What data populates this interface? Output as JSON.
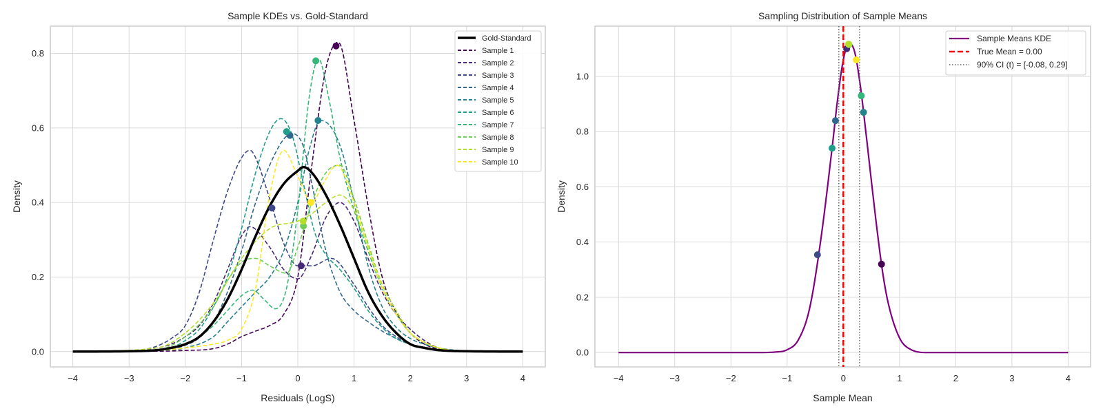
{
  "chart_data": [
    {
      "type": "line",
      "title": "Sample KDEs vs. Gold-Standard",
      "xlabel": "Residuals (LogS)",
      "ylabel": "Density",
      "xlim": [
        -4.4,
        4.4
      ],
      "ylim": [
        -0.041,
        0.873
      ],
      "xticks": [
        -4,
        -3,
        -2,
        -1,
        0,
        1,
        2,
        3,
        4
      ],
      "yticks": [
        0.0,
        0.2,
        0.4,
        0.6,
        0.8
      ],
      "grid": true,
      "legend_position": "top-right",
      "series": [
        {
          "name": "Gold-Standard",
          "color": "#000000",
          "style": "solid",
          "x": [
            -4,
            -3,
            -2.5,
            -2.25,
            -2,
            -1.75,
            -1.5,
            -1.25,
            -1,
            -0.75,
            -0.5,
            -0.25,
            0,
            0.1,
            0.25,
            0.5,
            0.75,
            1,
            1.25,
            1.5,
            1.75,
            2,
            2.25,
            2.5,
            3,
            4
          ],
          "y": [
            0,
            0.001,
            0.004,
            0.01,
            0.02,
            0.04,
            0.08,
            0.14,
            0.22,
            0.31,
            0.39,
            0.45,
            0.485,
            0.495,
            0.48,
            0.42,
            0.34,
            0.25,
            0.16,
            0.095,
            0.05,
            0.02,
            0.01,
            0.004,
            0.001,
            0
          ]
        },
        {
          "name": "Sample 1",
          "color": "#440154",
          "style": "dashed",
          "mean": 0.68,
          "mean_density": 0.82,
          "x": [
            -4,
            -2.5,
            -2,
            -1.5,
            -1.25,
            -1,
            -0.75,
            -0.5,
            -0.25,
            0,
            0.25,
            0.5,
            0.72,
            1,
            1.25,
            1.5,
            1.75,
            2,
            2.25,
            2.5,
            3,
            4
          ],
          "y": [
            0,
            0.001,
            0.003,
            0.008,
            0.02,
            0.04,
            0.055,
            0.07,
            0.1,
            0.2,
            0.5,
            0.76,
            0.83,
            0.62,
            0.39,
            0.2,
            0.105,
            0.05,
            0.02,
            0.007,
            0.001,
            0
          ]
        },
        {
          "name": "Sample 2",
          "color": "#482878",
          "style": "dashed",
          "mean": 0.06,
          "mean_density": 0.23,
          "x": [
            -4,
            -3,
            -2.5,
            -2.25,
            -2,
            -1.75,
            -1.5,
            -1.25,
            -1,
            -0.85,
            -0.5,
            -0.25,
            0,
            0.25,
            0.5,
            0.75,
            1,
            1.25,
            1.5,
            1.75,
            2,
            2.25,
            2.5,
            3,
            4
          ],
          "y": [
            0,
            0.002,
            0.01,
            0.02,
            0.04,
            0.07,
            0.13,
            0.22,
            0.31,
            0.335,
            0.28,
            0.22,
            0.195,
            0.26,
            0.36,
            0.4,
            0.35,
            0.25,
            0.16,
            0.1,
            0.06,
            0.03,
            0.01,
            0.002,
            0
          ]
        },
        {
          "name": "Sample 3",
          "color": "#3e4989",
          "style": "dashed",
          "mean": -0.46,
          "mean_density": 0.385,
          "x": [
            -4,
            -3,
            -2.75,
            -2.5,
            -2.25,
            -2,
            -1.75,
            -1.5,
            -1.25,
            -1,
            -0.85,
            -0.75,
            -0.5,
            -0.25,
            0,
            0.25,
            0.6,
            1,
            1.25,
            1.5,
            1.75,
            2,
            2.5,
            3,
            4
          ],
          "y": [
            0,
            0.002,
            0.005,
            0.015,
            0.035,
            0.07,
            0.16,
            0.3,
            0.43,
            0.52,
            0.54,
            0.52,
            0.41,
            0.29,
            0.23,
            0.23,
            0.25,
            0.18,
            0.12,
            0.07,
            0.04,
            0.02,
            0.005,
            0.001,
            0
          ]
        },
        {
          "name": "Sample 4",
          "color": "#31688e",
          "style": "dashed",
          "mean": -0.14,
          "mean_density": 0.58,
          "x": [
            -4,
            -2.75,
            -2.5,
            -2.25,
            -2,
            -1.75,
            -1.5,
            -1.25,
            -1,
            -0.75,
            -0.5,
            -0.25,
            -0.1,
            0.1,
            0.25,
            0.5,
            0.75,
            1,
            1.25,
            1.5,
            1.75,
            2,
            2.5,
            3,
            4
          ],
          "y": [
            0,
            0.001,
            0.003,
            0.007,
            0.017,
            0.037,
            0.08,
            0.16,
            0.27,
            0.4,
            0.5,
            0.57,
            0.585,
            0.55,
            0.45,
            0.27,
            0.16,
            0.11,
            0.08,
            0.055,
            0.035,
            0.02,
            0.006,
            0.001,
            0
          ]
        },
        {
          "name": "Sample 5",
          "color": "#26828e",
          "style": "dashed",
          "mean": 0.36,
          "mean_density": 0.62,
          "x": [
            -4,
            -2.5,
            -2,
            -1.5,
            -1.25,
            -1,
            -0.75,
            -0.5,
            -0.25,
            0,
            0.2,
            0.4,
            0.6,
            0.8,
            1,
            1.25,
            1.5,
            1.75,
            2,
            2.25,
            2.5,
            3,
            4
          ],
          "y": [
            0,
            0.003,
            0.01,
            0.04,
            0.08,
            0.12,
            0.16,
            0.2,
            0.27,
            0.4,
            0.54,
            0.62,
            0.6,
            0.53,
            0.4,
            0.23,
            0.12,
            0.065,
            0.035,
            0.02,
            0.01,
            0.002,
            0
          ]
        },
        {
          "name": "Sample 6",
          "color": "#1f9e89",
          "style": "dashed",
          "mean": -0.2,
          "mean_density": 0.59,
          "x": [
            -4,
            -2.5,
            -2.25,
            -2,
            -1.75,
            -1.5,
            -1.25,
            -1,
            -0.75,
            -0.5,
            -0.3,
            -0.1,
            0.1,
            0.3,
            0.5,
            0.75,
            1,
            1.25,
            1.5,
            1.75,
            2,
            2.5,
            3,
            4
          ],
          "y": [
            0,
            0.003,
            0.01,
            0.03,
            0.06,
            0.12,
            0.2,
            0.33,
            0.48,
            0.59,
            0.625,
            0.58,
            0.45,
            0.32,
            0.26,
            0.22,
            0.17,
            0.11,
            0.065,
            0.035,
            0.02,
            0.005,
            0.001,
            0
          ]
        },
        {
          "name": "Sample 7",
          "color": "#35b779",
          "style": "dashed",
          "mean": 0.32,
          "mean_density": 0.78,
          "x": [
            -4,
            -2.5,
            -2.25,
            -2,
            -1.75,
            -1.5,
            -1.25,
            -1,
            -0.8,
            -0.6,
            -0.4,
            -0.2,
            0,
            0.2,
            0.37,
            0.55,
            0.75,
            1,
            1.25,
            1.5,
            1.75,
            2,
            2.25,
            2.5,
            3,
            4
          ],
          "y": [
            0,
            0.003,
            0.01,
            0.02,
            0.04,
            0.07,
            0.11,
            0.15,
            0.165,
            0.14,
            0.115,
            0.17,
            0.38,
            0.68,
            0.785,
            0.68,
            0.52,
            0.38,
            0.27,
            0.17,
            0.1,
            0.05,
            0.025,
            0.01,
            0.001,
            0
          ]
        },
        {
          "name": "Sample 8",
          "color": "#6ece58",
          "style": "dashed",
          "mean": 0.1,
          "mean_density": 0.337,
          "x": [
            -4,
            -2.5,
            -2,
            -1.5,
            -1.25,
            -1,
            -0.75,
            -0.5,
            -0.2,
            0,
            0.25,
            0.5,
            0.75,
            1,
            1.25,
            1.5,
            1.75,
            2,
            2.25,
            2.5,
            3,
            4
          ],
          "y": [
            0,
            0.005,
            0.04,
            0.12,
            0.19,
            0.24,
            0.25,
            0.23,
            0.21,
            0.28,
            0.4,
            0.48,
            0.5,
            0.41,
            0.29,
            0.18,
            0.11,
            0.05,
            0.025,
            0.01,
            0.001,
            0
          ]
        },
        {
          "name": "Sample 9",
          "color": "#b5de2b",
          "style": "dashed",
          "mean": 0.095,
          "mean_density": 0.35,
          "x": [
            -4,
            -2.5,
            -2,
            -1.5,
            -1,
            -0.5,
            0,
            0.25,
            0.5,
            0.75,
            1,
            1.25,
            1.5,
            1.75,
            2,
            2.25,
            2.5,
            3,
            4
          ],
          "y": [
            0,
            0.01,
            0.05,
            0.13,
            0.25,
            0.33,
            0.35,
            0.37,
            0.4,
            0.42,
            0.38,
            0.28,
            0.18,
            0.11,
            0.05,
            0.025,
            0.01,
            0.001,
            0
          ]
        },
        {
          "name": "Sample 10",
          "color": "#fde725",
          "style": "dashed",
          "mean": 0.23,
          "mean_density": 0.4,
          "x": [
            -4,
            -2.5,
            -2,
            -1.5,
            -1.25,
            -1,
            -0.75,
            -0.5,
            -0.25,
            0,
            0.25,
            0.45,
            0.7,
            1,
            1.25,
            1.5,
            1.75,
            2,
            2.25,
            2.5,
            3,
            4
          ],
          "y": [
            0,
            0.003,
            0.01,
            0.02,
            0.03,
            0.06,
            0.17,
            0.42,
            0.54,
            0.47,
            0.4,
            0.45,
            0.5,
            0.4,
            0.28,
            0.17,
            0.1,
            0.05,
            0.025,
            0.01,
            0.001,
            0
          ]
        }
      ]
    },
    {
      "type": "line",
      "title": "Sampling Distribution of Sample Means",
      "xlabel": "Sample Mean",
      "ylabel": "Density",
      "xlim": [
        -4.42,
        4.4
      ],
      "ylim": [
        -0.052,
        1.182
      ],
      "xticks": [
        -4,
        -3,
        -2,
        -1,
        0,
        1,
        2,
        3,
        4
      ],
      "yticks": [
        0.0,
        0.2,
        0.4,
        0.6,
        0.8,
        1.0
      ],
      "grid": true,
      "legend_position": "top-right",
      "kde": {
        "name": "Sample Means KDE",
        "color": "#800080",
        "x": [
          -4,
          -1.5,
          -1.2,
          -1.0,
          -0.8,
          -0.6,
          -0.4,
          -0.2,
          -0.1,
          0,
          0.1,
          0.2,
          0.3,
          0.4,
          0.5,
          0.6,
          0.7,
          0.8,
          1.0,
          1.2,
          1.5,
          4
        ],
        "y": [
          0,
          0,
          0.002,
          0.01,
          0.046,
          0.16,
          0.41,
          0.74,
          0.92,
          1.06,
          1.12,
          1.09,
          0.97,
          0.8,
          0.62,
          0.445,
          0.29,
          0.178,
          0.053,
          0.011,
          0,
          0
        ]
      },
      "true_mean": {
        "name": "True Mean = 0.00",
        "value": 0.0,
        "color": "#ff0000"
      },
      "ci": {
        "name": "90% CI (t) = [-0.08, 0.29]",
        "lower": -0.08,
        "upper": 0.29,
        "color": "#666666"
      },
      "points": [
        {
          "x": 0.68,
          "y": 0.32,
          "color": "#440154"
        },
        {
          "x": 0.06,
          "y": 1.1,
          "color": "#482878"
        },
        {
          "x": -0.46,
          "y": 0.354,
          "color": "#3e4989"
        },
        {
          "x": -0.14,
          "y": 0.84,
          "color": "#31688e"
        },
        {
          "x": 0.36,
          "y": 0.87,
          "color": "#26828e"
        },
        {
          "x": -0.2,
          "y": 0.74,
          "color": "#1f9e89"
        },
        {
          "x": 0.32,
          "y": 0.93,
          "color": "#35b779"
        },
        {
          "x": 0.1,
          "y": 1.115,
          "color": "#6ece58"
        },
        {
          "x": 0.095,
          "y": 1.117,
          "color": "#b5de2b"
        },
        {
          "x": 0.23,
          "y": 1.06,
          "color": "#fde725"
        }
      ]
    }
  ]
}
